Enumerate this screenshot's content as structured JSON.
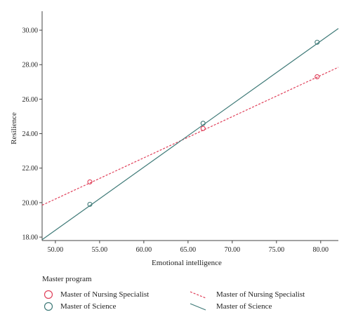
{
  "chart_data": {
    "type": "scatter",
    "title": "",
    "xlabel": "Emotional intelligence",
    "ylabel": "Resilience",
    "xlim": [
      48.5,
      82.0
    ],
    "ylim": [
      17.8,
      31.1
    ],
    "x_ticks": [
      "50.00",
      "55.00",
      "60.00",
      "65.00",
      "70.00",
      "75.00",
      "80.00"
    ],
    "y_ticks": [
      "18.00",
      "20.00",
      "22.00",
      "24.00",
      "26.00",
      "28.00",
      "30.00"
    ],
    "grid": false,
    "legend": {
      "title": "Master program",
      "placement": "bottom",
      "markers": [
        "Master of Nursing Specialist",
        "Master of Science"
      ],
      "lines": [
        "Master of Nursing Specialist",
        "Master of Science"
      ]
    },
    "series": [
      {
        "name": "Master of Nursing Specialist",
        "color": "#e0405a",
        "line_style": "dashed",
        "points": [
          [
            53.9,
            21.2
          ],
          [
            66.7,
            24.3
          ],
          [
            79.6,
            27.3
          ]
        ],
        "fit_line": [
          [
            48.5,
            19.85
          ],
          [
            82.0,
            27.85
          ]
        ]
      },
      {
        "name": "Master of Science",
        "color": "#3f7a78",
        "line_style": "solid",
        "points": [
          [
            53.9,
            19.9
          ],
          [
            66.7,
            24.6
          ],
          [
            79.6,
            29.3
          ]
        ],
        "fit_line": [
          [
            48.5,
            17.85
          ],
          [
            82.0,
            30.1
          ]
        ]
      }
    ]
  }
}
